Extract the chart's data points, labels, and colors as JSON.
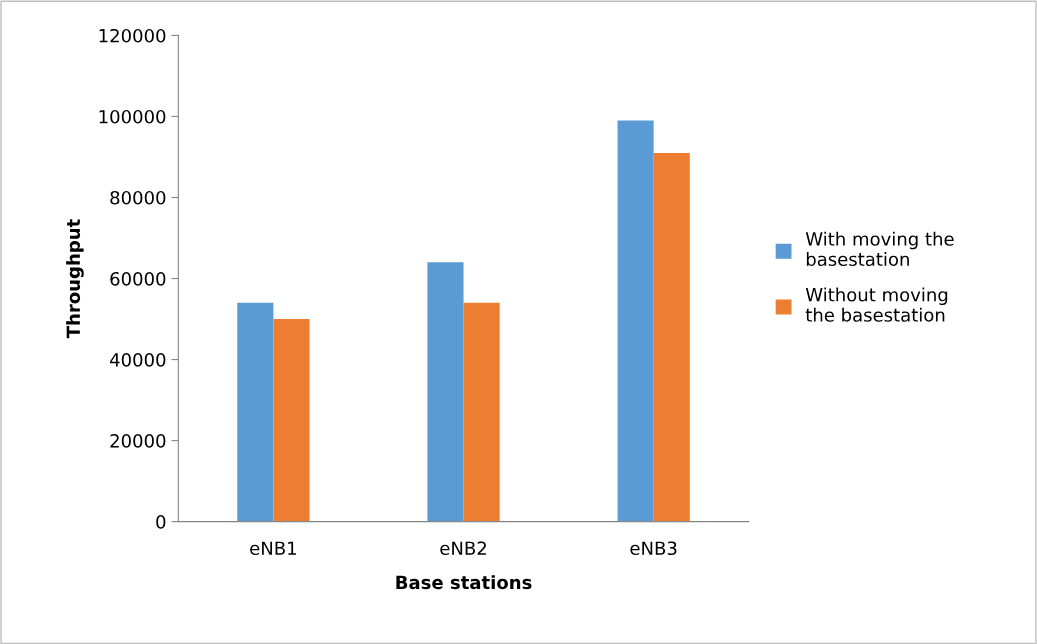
{
  "chart_data": {
    "type": "bar",
    "xlabel": "Base stations",
    "ylabel": "Throughput",
    "categories": [
      "eNB1",
      "eNB2",
      "eNB3"
    ],
    "series": [
      {
        "name": "With moving the basestation",
        "color": "#5b9bd5",
        "values": [
          54000,
          64000,
          99000
        ]
      },
      {
        "name": "Without moving the basestation",
        "color": "#ed7d31",
        "values": [
          50000,
          54000,
          91000
        ]
      }
    ],
    "ylim": [
      0,
      120000
    ],
    "yticks": [
      0,
      20000,
      40000,
      60000,
      80000,
      100000,
      120000
    ],
    "grid": false,
    "legend": "right"
  }
}
